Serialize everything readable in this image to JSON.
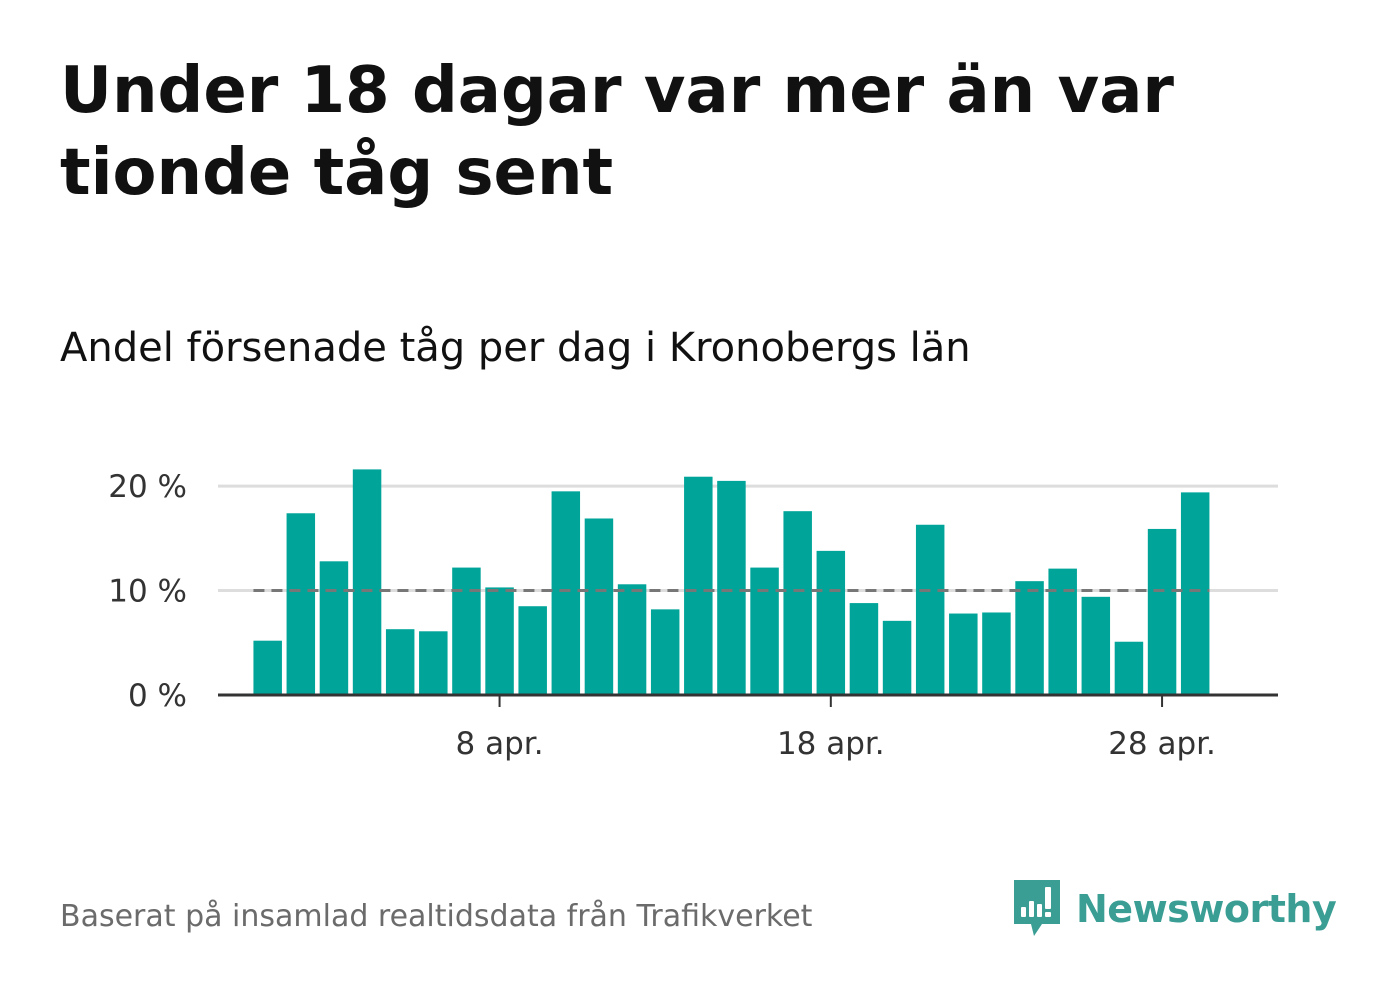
{
  "title": "Under 18 dagar var mer än var tionde tåg sent",
  "subtitle": "Andel försenade tåg per dag i Kronobergs län",
  "source": "Baserat på insamlad realtidsdata från Trafikverket",
  "brand": {
    "name": "Newsworthy",
    "color": "#3a9e94",
    "icon": "newsworthy-logo-icon"
  },
  "colors": {
    "bar": "#00a499",
    "grid": "#dddddd",
    "axis": "#333333",
    "reference_line": "#777777"
  },
  "chart_data": {
    "type": "bar",
    "x": [
      1,
      2,
      3,
      4,
      5,
      6,
      7,
      8,
      9,
      10,
      11,
      12,
      13,
      14,
      15,
      16,
      17,
      18,
      19,
      20,
      21,
      22,
      23,
      24,
      25,
      26,
      27,
      28,
      29,
      30
    ],
    "values": [
      5.2,
      17.4,
      12.8,
      21.6,
      6.3,
      6.1,
      12.2,
      10.3,
      8.5,
      19.5,
      16.9,
      10.6,
      8.2,
      20.9,
      20.5,
      12.2,
      17.6,
      13.8,
      8.8,
      7.1,
      16.3,
      7.8,
      7.9,
      10.9,
      12.1,
      9.4,
      5.1,
      15.9,
      19.4,
      null
    ],
    "x_ticks": [
      {
        "x": 8,
        "label": "8 apr."
      },
      {
        "x": 18,
        "label": "18 apr."
      },
      {
        "x": 28,
        "label": "28 apr."
      }
    ],
    "y_ticks": [
      {
        "value": 0,
        "label": "0 %"
      },
      {
        "value": 10,
        "label": "10 %"
      },
      {
        "value": 20,
        "label": "20 %"
      }
    ],
    "ylim": [
      0,
      22.5
    ],
    "xlim": [
      -0.5,
      31.5
    ],
    "reference_line": {
      "value": 10,
      "style": "dashed"
    },
    "grid": true
  }
}
